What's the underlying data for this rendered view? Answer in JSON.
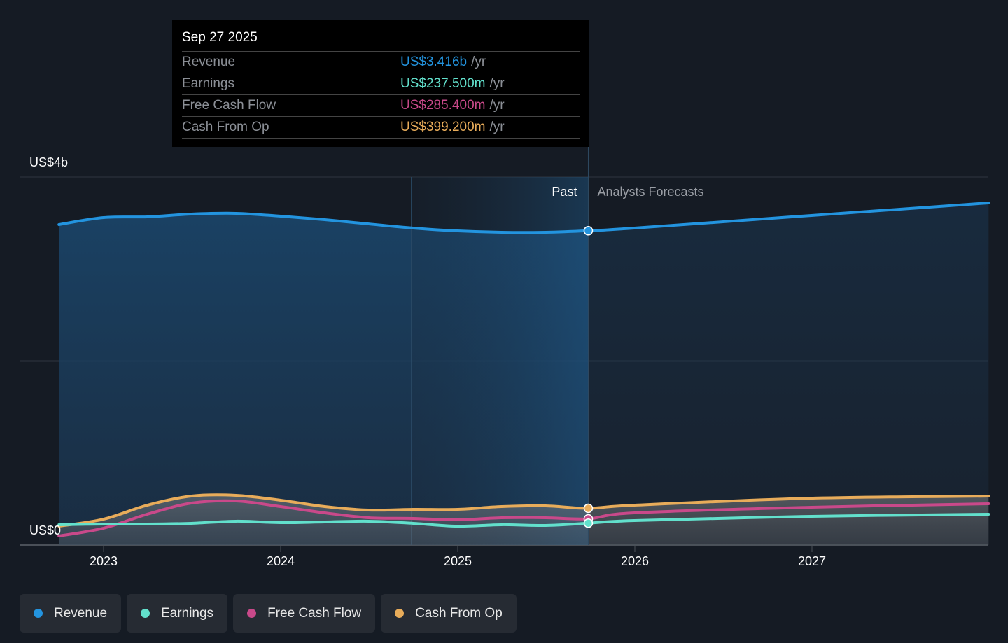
{
  "chart_data": {
    "type": "line",
    "y_axis": {
      "min": 0,
      "max": 4000,
      "unit": "US$ m",
      "tick_labels": [
        "US$0",
        "US$4b"
      ],
      "gridlines": [
        0,
        1000,
        2000,
        3000,
        4000
      ]
    },
    "x_axis": {
      "tick_labels": [
        "2023",
        "2024",
        "2025",
        "2026",
        "2027"
      ],
      "range": [
        "2022-10-01",
        "2027-12-31"
      ]
    },
    "grid": true,
    "past_label": "Past",
    "forecast_label": "Analysts Forecasts",
    "divider_date": "2025-09-27",
    "highlight_start": "2024-09-27",
    "x": [
      "2022-10-01",
      "2023-01-01",
      "2023-04-01",
      "2023-07-01",
      "2023-10-01",
      "2024-01-01",
      "2024-04-01",
      "2024-07-01",
      "2024-10-01",
      "2025-01-01",
      "2025-04-01",
      "2025-07-01",
      "2025-09-27",
      "2025-12-31",
      "2026-12-31",
      "2027-12-31"
    ],
    "series": [
      {
        "name": "Revenue",
        "color": "#2394df",
        "values": [
          3483,
          3559,
          3567,
          3597,
          3605,
          3574,
          3536,
          3490,
          3445,
          3414,
          3399,
          3399,
          3416,
          3445,
          3582,
          3719
        ]
      },
      {
        "name": "Earnings",
        "color": "#62e0cc",
        "values": [
          221,
          228,
          228,
          236,
          259,
          243,
          251,
          259,
          236,
          205,
          221,
          213,
          237.5,
          266,
          312,
          335
        ]
      },
      {
        "name": "Free Cash Flow",
        "color": "#c9498a",
        "values": [
          99,
          183,
          335,
          456,
          479,
          418,
          350,
          297,
          289,
          274,
          297,
          297,
          285.4,
          350,
          411,
          449
        ]
      },
      {
        "name": "Cash From Op",
        "color": "#e8ac5a",
        "values": [
          205,
          281,
          433,
          532,
          540,
          487,
          418,
          380,
          388,
          388,
          418,
          426,
          399.2,
          433,
          509,
          532
        ]
      }
    ]
  },
  "tooltip": {
    "date": "Sep 27 2025",
    "unit": "/yr",
    "rows": [
      {
        "label": "Revenue",
        "value": "US$3.416b",
        "color": "#2394df"
      },
      {
        "label": "Earnings",
        "value": "US$237.500m",
        "color": "#62e0cc"
      },
      {
        "label": "Free Cash Flow",
        "value": "US$285.400m",
        "color": "#c9498a"
      },
      {
        "label": "Cash From Op",
        "value": "US$399.200m",
        "color": "#e8ac5a"
      }
    ]
  },
  "legend": [
    {
      "label": "Revenue",
      "color": "#2394df"
    },
    {
      "label": "Earnings",
      "color": "#62e0cc"
    },
    {
      "label": "Free Cash Flow",
      "color": "#c9498a"
    },
    {
      "label": "Cash From Op",
      "color": "#e8ac5a"
    }
  ]
}
